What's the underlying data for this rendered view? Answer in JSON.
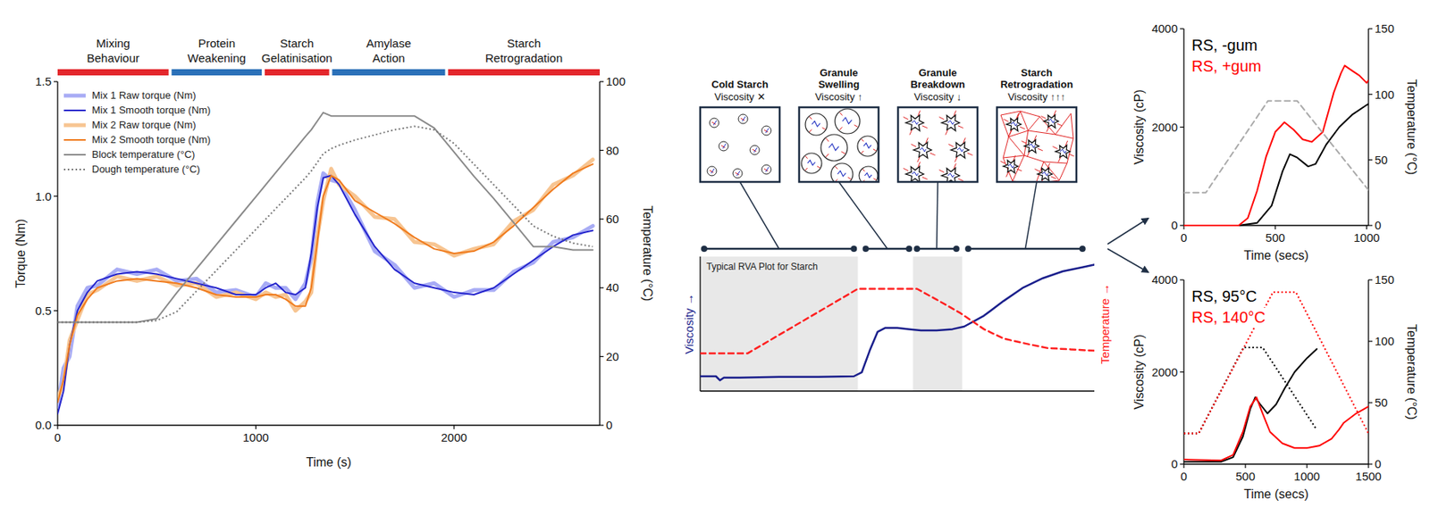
{
  "chart_data": [
    {
      "type": "line",
      "x_label": "Time (s)",
      "y_label": "Torque (Nm)",
      "y2_label": "Temperature (°C)",
      "phases": [
        {
          "label": "Mixing Behaviour",
          "start": 0,
          "end": 560,
          "color": "#e3262b"
        },
        {
          "label": "Protein Weakening",
          "start": 575,
          "end": 1030,
          "color": "#2a70b8"
        },
        {
          "label": "Starch Gelatinisation",
          "start": 1045,
          "end": 1370,
          "color": "#e3262b"
        },
        {
          "label": "Amylase Action",
          "start": 1385,
          "end": 1955,
          "color": "#2a70b8"
        },
        {
          "label": "Starch Retrogradation",
          "start": 1970,
          "end": 2735,
          "color": "#e3262b"
        }
      ],
      "x": [
        0,
        30,
        60,
        100,
        150,
        200,
        300,
        400,
        500,
        600,
        700,
        800,
        900,
        1000,
        1050,
        1100,
        1150,
        1200,
        1250,
        1280,
        1310,
        1340,
        1380,
        1420,
        1500,
        1600,
        1700,
        1800,
        1900,
        2000,
        2100,
        2200,
        2300,
        2400,
        2500,
        2600,
        2700
      ],
      "xlim": [
        0,
        2735
      ],
      "xticks": [
        0,
        1000,
        2000
      ],
      "ylim": [
        0,
        1.5
      ],
      "yticks": [
        {
          "value": 0,
          "label": "0.0"
        },
        {
          "value": 0.5,
          "label": "0.5"
        },
        {
          "value": 1,
          "label": "1.0"
        },
        {
          "value": 1.5,
          "label": "1.5"
        }
      ],
      "y2lim": [
        0,
        100
      ],
      "y2ticks": [
        0,
        20,
        40,
        60,
        80,
        100
      ],
      "legend": "upper left",
      "series": [
        {
          "name": "Mix 1 Raw torque (Nm)",
          "color": "#a8acf5",
          "line_style": "thick",
          "values": [
            0.08,
            0.25,
            0.3,
            0.52,
            0.6,
            0.61,
            0.68,
            0.66,
            0.68,
            0.63,
            0.64,
            0.58,
            0.59,
            0.56,
            0.62,
            0.6,
            0.6,
            0.55,
            0.62,
            0.73,
            0.97,
            1.1,
            1.07,
            1.06,
            0.94,
            0.76,
            0.7,
            0.6,
            0.62,
            0.56,
            0.59,
            0.59,
            0.67,
            0.71,
            0.8,
            0.82,
            0.87
          ]
        },
        {
          "name": "Mix 1 Smooth torque (Nm)",
          "color": "#2323cc",
          "line_style": "solid",
          "values": [
            0.05,
            0.15,
            0.35,
            0.5,
            0.58,
            0.63,
            0.66,
            0.67,
            0.66,
            0.64,
            0.62,
            0.6,
            0.57,
            0.57,
            0.6,
            0.62,
            0.58,
            0.57,
            0.6,
            0.75,
            0.95,
            1.08,
            1.09,
            1.05,
            0.92,
            0.78,
            0.68,
            0.62,
            0.6,
            0.58,
            0.57,
            0.6,
            0.66,
            0.72,
            0.78,
            0.83,
            0.85
          ]
        },
        {
          "name": "Mix 2 Raw torque (Nm)",
          "color": "#f7c592",
          "line_style": "thick",
          "values": [
            0.12,
            0.18,
            0.37,
            0.46,
            0.57,
            0.59,
            0.65,
            0.63,
            0.65,
            0.61,
            0.62,
            0.56,
            0.58,
            0.55,
            0.58,
            0.56,
            0.57,
            0.5,
            0.54,
            0.58,
            0.82,
            0.98,
            1.12,
            1.05,
            1.0,
            0.91,
            0.9,
            0.8,
            0.79,
            0.74,
            0.77,
            0.79,
            0.89,
            0.94,
            1.05,
            1.09,
            1.16
          ]
        },
        {
          "name": "Mix 2 Smooth torque (Nm)",
          "color": "#f07b1d",
          "line_style": "solid",
          "values": [
            0.1,
            0.2,
            0.35,
            0.48,
            0.55,
            0.6,
            0.63,
            0.64,
            0.63,
            0.62,
            0.6,
            0.57,
            0.56,
            0.56,
            0.57,
            0.57,
            0.55,
            0.52,
            0.52,
            0.6,
            0.8,
            1.0,
            1.09,
            1.07,
            0.98,
            0.93,
            0.88,
            0.82,
            0.77,
            0.75,
            0.76,
            0.8,
            0.87,
            0.95,
            1.03,
            1.1,
            1.14
          ]
        },
        {
          "name": "Block temperature (°C)",
          "color": "#8a8a8a",
          "line_style": "solid",
          "axis": "y2",
          "values": [
            30,
            30,
            30,
            30,
            30,
            30,
            30,
            30,
            31,
            38.5,
            45.5,
            52.5,
            59.5,
            66.5,
            70,
            73.5,
            77,
            80.5,
            84,
            86,
            88.5,
            91,
            90,
            90,
            90,
            90,
            90,
            90,
            86.5,
            79.5,
            72.5,
            66,
            59,
            52,
            52,
            51,
            51
          ]
        },
        {
          "name": "Dough temperature (°C)",
          "color": "#777777",
          "line_style": "dotted",
          "axis": "y2",
          "values": [
            30,
            30,
            30,
            30,
            30,
            30,
            30,
            30,
            30.5,
            33,
            39,
            45,
            51,
            57,
            60,
            63,
            66,
            69,
            72,
            74,
            76.5,
            79,
            80.5,
            81.5,
            83,
            84.5,
            86,
            87,
            86,
            82,
            76,
            70,
            64,
            58,
            55,
            53,
            52
          ]
        }
      ]
    },
    {
      "type": "line",
      "tick_labels": false,
      "y_label": "Viscosity →",
      "y2_label": "Temperature →",
      "annotations": [
        "Typical RVA Plot for Starch"
      ],
      "xlim": [
        0,
        100
      ],
      "ylim": [
        0,
        100
      ],
      "y2lim": [
        0,
        100
      ],
      "shaded": [
        [
          0,
          40
        ],
        [
          54,
          66.5
        ]
      ],
      "stages": [
        {
          "title": "Cold Starch",
          "label": "Viscosity ✕",
          "range": [
            1,
            39
          ]
        },
        {
          "title": "Granule Swelling",
          "label": "Viscosity ↑",
          "range": [
            42,
            53
          ]
        },
        {
          "title": "Granule Breakdown",
          "label": "Viscosity ↓",
          "range": [
            55,
            65
          ]
        },
        {
          "title": "Starch Retrogradation",
          "label": "Viscosity ↑↑↑",
          "range": [
            68,
            97
          ]
        }
      ],
      "series": [
        {
          "color": "#1a1f8c",
          "line_style": "solid",
          "x": [
            0,
            4,
            5,
            6,
            10,
            20,
            30,
            39,
            41,
            43,
            45,
            47,
            50,
            53,
            56,
            60,
            64,
            67,
            72,
            77,
            82,
            87,
            92,
            97,
            100
          ],
          "values": [
            11,
            11,
            8,
            10,
            10,
            10.5,
            10.5,
            11,
            14,
            30,
            44,
            47,
            47,
            46,
            45,
            45,
            46,
            48,
            56,
            67,
            77,
            84,
            89,
            92,
            94
          ]
        },
        {
          "color": "#ff2020",
          "line_style": "dashed",
          "axis": "y2",
          "x": [
            0,
            12,
            40,
            55,
            60,
            66,
            72,
            77,
            83,
            88,
            94,
            100
          ],
          "values": [
            28,
            28,
            76,
            76,
            68,
            58,
            46,
            39,
            35,
            32,
            31,
            30
          ]
        }
      ]
    },
    {
      "type": "line",
      "x_label": "Time (secs)",
      "y_label": "Viscosity (cP)",
      "y2_label": "Temperature (°C)",
      "xlim": [
        0,
        1010
      ],
      "xticks": [
        0,
        500,
        1000
      ],
      "ylim": [
        0,
        4000
      ],
      "yticks": [
        0,
        2000,
        4000
      ],
      "y2lim": [
        0,
        150
      ],
      "y2ticks": [
        0,
        50,
        100,
        150
      ],
      "legend": "upper left",
      "series": [
        {
          "name": "RS, -gum",
          "color": "#000000",
          "line_style": "solid",
          "x": [
            0,
            300,
            400,
            480,
            540,
            580,
            620,
            680,
            720,
            780,
            850,
            920,
            1000,
            1010
          ],
          "values": [
            0,
            0,
            50,
            400,
            1100,
            1450,
            1380,
            1200,
            1250,
            1650,
            2000,
            2250,
            2450,
            2470
          ]
        },
        {
          "name": "RS, +gum",
          "color": "#ff0000",
          "line_style": "solid",
          "x": [
            0,
            300,
            350,
            400,
            450,
            500,
            550,
            600,
            650,
            700,
            760,
            820,
            860,
            880,
            920,
            960,
            1000,
            1010
          ],
          "values": [
            0,
            0,
            150,
            700,
            1400,
            1900,
            2100,
            1950,
            1750,
            1700,
            1900,
            2700,
            3100,
            3250,
            3150,
            3050,
            2900,
            2950
          ]
        },
        {
          "color": "#aaaaaa",
          "line_style": "dashed",
          "axis": "y2",
          "x": [
            0,
            120,
            460,
            620,
            1010
          ],
          "values": [
            25,
            25,
            95,
            95,
            27
          ]
        }
      ]
    },
    {
      "type": "line",
      "x_label": "Time (secs)",
      "y_label": "Viscosity (cP)",
      "y2_label": "Temperature (°C)",
      "xlim": [
        0,
        1500
      ],
      "xticks": [
        0,
        500,
        1000,
        1500
      ],
      "ylim": [
        0,
        4000
      ],
      "yticks": [
        0,
        2000,
        4000
      ],
      "y2lim": [
        0,
        150
      ],
      "y2ticks": [
        0,
        50,
        100,
        150
      ],
      "legend": "upper left",
      "series": [
        {
          "name": "RS, 95°C",
          "color": "#000000",
          "line_style": "solid",
          "x": [
            0,
            300,
            400,
            480,
            540,
            580,
            620,
            680,
            750,
            820,
            900,
            1000,
            1080
          ],
          "values": [
            50,
            50,
            150,
            600,
            1200,
            1450,
            1300,
            1100,
            1300,
            1650,
            2000,
            2300,
            2500
          ]
        },
        {
          "name": "RS, 140°C",
          "color": "#ff0000",
          "line_style": "solid",
          "x": [
            0,
            300,
            400,
            480,
            540,
            590,
            640,
            700,
            800,
            900,
            1000,
            1100,
            1200,
            1260,
            1300,
            1400,
            1500
          ],
          "values": [
            100,
            80,
            200,
            700,
            1250,
            1450,
            1100,
            700,
            450,
            350,
            350,
            400,
            550,
            750,
            900,
            1100,
            1250
          ]
        },
        {
          "color": "#000000",
          "line_style": "dotted",
          "axis": "y2",
          "x": [
            0,
            120,
            485,
            640,
            1080
          ],
          "values": [
            25,
            25,
            95,
            95,
            28
          ]
        },
        {
          "color": "#ff0000",
          "line_style": "dotted",
          "axis": "y2",
          "x": [
            0,
            120,
            724,
            910,
            1500
          ],
          "values": [
            25,
            25,
            140,
            140,
            25
          ]
        }
      ]
    }
  ]
}
